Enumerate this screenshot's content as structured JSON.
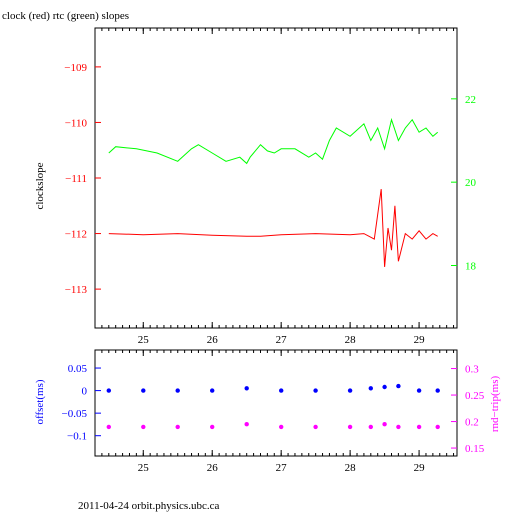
{
  "title": "clock (red) rtc (green) slopes",
  "footer": "2011-04-24 orbit.physics.ubc.ca",
  "colors": {
    "clock": "#ff0000",
    "rtc": "#00ff00",
    "offset": "#0000ff",
    "roundtrip": "#ff00ff",
    "axes": "#000000"
  },
  "chart_data": [
    {
      "type": "line",
      "title": "clock (red) rtc (green) slopes",
      "ylabel": "clockslope",
      "xlim": [
        24.3,
        29.55
      ],
      "x_ticks": [
        25,
        26,
        27,
        28,
        29
      ],
      "ylim_left": [
        -113.7,
        -108.3
      ],
      "yticks_left": [
        -109,
        -110,
        -111,
        -112,
        -113
      ],
      "ylim_right": [
        16.5,
        23.7
      ],
      "yticks_right": [
        18,
        20,
        22
      ],
      "series": [
        {
          "name": "clock",
          "axis": "left",
          "color": "#ff0000",
          "x": [
            24.5,
            25.0,
            25.5,
            26.0,
            26.5,
            26.7,
            27.0,
            27.5,
            28.0,
            28.2,
            28.35,
            28.45,
            28.5,
            28.55,
            28.6,
            28.65,
            28.7,
            28.8,
            28.9,
            29.0,
            29.1,
            29.2,
            29.27
          ],
          "y": [
            -112.0,
            -112.02,
            -112.0,
            -112.03,
            -112.05,
            -112.05,
            -112.02,
            -112.0,
            -112.02,
            -112.0,
            -112.1,
            -111.2,
            -112.6,
            -111.9,
            -112.3,
            -111.5,
            -112.5,
            -112.0,
            -112.1,
            -111.95,
            -112.1,
            -112.0,
            -112.05
          ]
        },
        {
          "name": "rtc",
          "axis": "right",
          "color": "#00ff00",
          "x": [
            24.5,
            24.6,
            24.9,
            25.2,
            25.5,
            25.7,
            25.8,
            26.0,
            26.2,
            26.4,
            26.5,
            26.55,
            26.7,
            26.8,
            26.9,
            27.0,
            27.2,
            27.4,
            27.5,
            27.6,
            27.7,
            27.8,
            28.0,
            28.2,
            28.3,
            28.4,
            28.5,
            28.6,
            28.7,
            28.8,
            28.9,
            29.0,
            29.1,
            29.2,
            29.27
          ],
          "y": [
            20.7,
            20.85,
            20.8,
            20.7,
            20.5,
            20.8,
            20.9,
            20.7,
            20.5,
            20.6,
            20.45,
            20.6,
            20.9,
            20.75,
            20.7,
            20.8,
            20.8,
            20.6,
            20.7,
            20.55,
            21.0,
            21.3,
            21.1,
            21.4,
            21.0,
            21.3,
            20.8,
            21.5,
            21.0,
            21.3,
            21.5,
            21.2,
            21.3,
            21.1,
            21.2
          ]
        }
      ]
    },
    {
      "type": "scatter",
      "ylabel_left": "offset(ms)",
      "ylabel_right": "rnd−trip(ms)",
      "xlim": [
        24.3,
        29.55
      ],
      "x_ticks": [
        25,
        26,
        27,
        28,
        29
      ],
      "ylim_left": [
        -0.145,
        0.09
      ],
      "yticks_left": [
        0.05,
        0,
        -0.05,
        -0.1
      ],
      "ylim_right": [
        0.135,
        0.335
      ],
      "yticks_right": [
        0.3,
        0.25,
        0.2,
        0.15
      ],
      "series": [
        {
          "name": "offset",
          "axis": "left",
          "color": "#0000ff",
          "x": [
            24.5,
            25.0,
            25.5,
            26.0,
            26.5,
            27.0,
            27.5,
            28.0,
            28.3,
            28.5,
            28.7,
            29.0,
            29.27
          ],
          "y": [
            0.0,
            0.0,
            0.0,
            0.0,
            0.005,
            0.0,
            0.0,
            0.0,
            0.005,
            0.008,
            0.01,
            0.0,
            0.0
          ]
        },
        {
          "name": "roundtrip",
          "axis": "right",
          "color": "#ff00ff",
          "x": [
            24.5,
            25.0,
            25.5,
            26.0,
            26.5,
            27.0,
            27.5,
            28.0,
            28.3,
            28.5,
            28.7,
            29.0,
            29.27
          ],
          "y": [
            0.19,
            0.19,
            0.19,
            0.19,
            0.195,
            0.19,
            0.19,
            0.19,
            0.19,
            0.195,
            0.19,
            0.19,
            0.19
          ]
        }
      ]
    }
  ]
}
